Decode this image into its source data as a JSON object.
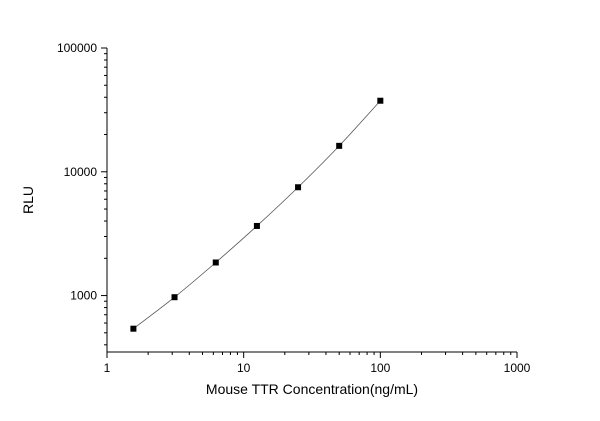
{
  "chart_data": {
    "type": "scatter",
    "title": "",
    "xlabel": "Mouse TTR Concentration(ng/mL)",
    "ylabel": "RLU",
    "x_scale": "log",
    "y_scale": "log",
    "xlim": [
      1,
      1000
    ],
    "ylim": [
      350,
      100000
    ],
    "x_ticks": [
      1,
      10,
      100,
      1000
    ],
    "x_tick_labels": [
      "1",
      "10",
      "100",
      "1000"
    ],
    "y_ticks": [
      1000,
      10000,
      100000
    ],
    "y_tick_labels": [
      "1000",
      "10000",
      "100000"
    ],
    "grid": false,
    "legend": "none",
    "series": [
      {
        "x": [
          1.56,
          3.12,
          6.25,
          12.5,
          25,
          50,
          100
        ],
        "y": [
          540,
          970,
          1850,
          3650,
          7500,
          16200,
          37500
        ],
        "marker": "square",
        "fit_curve": true
      }
    ],
    "colors": {
      "marker": "#000000",
      "curve": "#555555",
      "axis": "#000000"
    }
  }
}
